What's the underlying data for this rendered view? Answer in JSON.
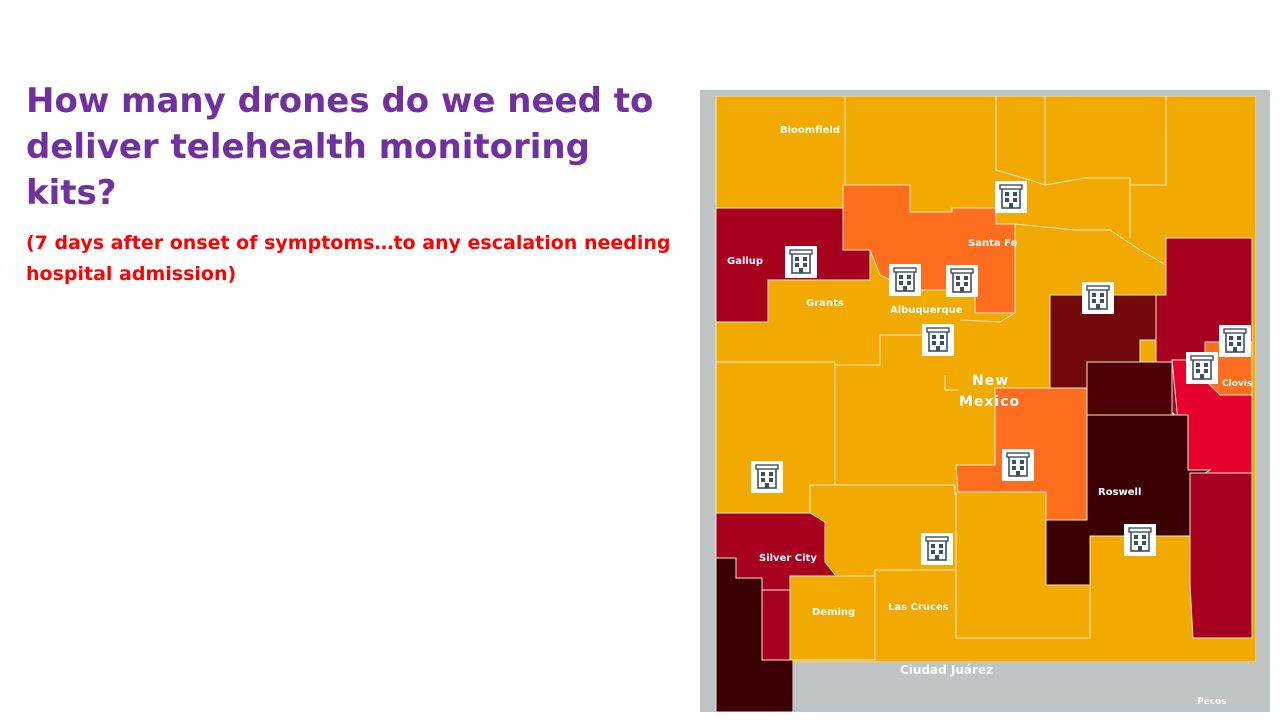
{
  "slide": {
    "title": "How many drones do we need to deliver telehealth monitoring kits?",
    "subtitle": "(7 days after onset of symptoms…to any escalation needing hospital admission)"
  },
  "map": {
    "region_label": "New Mexico",
    "palette": {
      "background": "#bfc4c4",
      "border": "#f5e6cc",
      "level_1": "#f2aa00",
      "level_2": "#ff6e1f",
      "level_3": "#e8002d",
      "level_4": "#a8001f",
      "level_5": "#72080c",
      "level_6": "#3a0004",
      "hospital_icon_fill": "#ffffff",
      "hospital_icon_stroke": "#3b5068"
    },
    "place_labels": [
      {
        "id": "bloomfield",
        "text": "Bloomfield"
      },
      {
        "id": "santa-fe",
        "text": "Santa Fe"
      },
      {
        "id": "gallup",
        "text": "Gallup"
      },
      {
        "id": "grants",
        "text": "Grants"
      },
      {
        "id": "albuquerque",
        "text": "Albuquerque"
      },
      {
        "id": "new",
        "text": "New"
      },
      {
        "id": "mexico",
        "text": "Mexico"
      },
      {
        "id": "clovis",
        "text": "Clovis"
      },
      {
        "id": "roswell",
        "text": "Roswell"
      },
      {
        "id": "silver-city",
        "text": "Silver City"
      },
      {
        "id": "deming",
        "text": "Deming"
      },
      {
        "id": "las-cruces",
        "text": "Las Cruces"
      },
      {
        "id": "ciudad-juarez",
        "text": "Ciudad Juárez"
      },
      {
        "id": "pecos",
        "text": "Pecos"
      }
    ],
    "hospital_marker_icon": "hospital-building-icon",
    "hospital_marker_count": 12
  }
}
